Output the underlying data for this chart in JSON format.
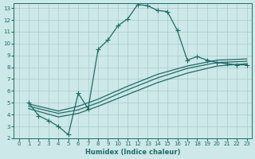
{
  "xlabel": "Humidex (Indice chaleur)",
  "xlim": [
    -0.5,
    23.5
  ],
  "ylim": [
    2,
    13.4
  ],
  "xticks": [
    0,
    1,
    2,
    3,
    4,
    5,
    6,
    7,
    8,
    9,
    10,
    11,
    12,
    13,
    14,
    15,
    16,
    17,
    18,
    19,
    20,
    21,
    22,
    23
  ],
  "yticks": [
    2,
    3,
    4,
    5,
    6,
    7,
    8,
    9,
    10,
    11,
    12,
    13
  ],
  "bg_color": "#cce8e8",
  "grid_color": "#aacccc",
  "line_color": "#1f6b65",
  "curve_x": [
    1,
    2,
    3,
    4,
    5,
    6,
    7,
    8,
    9,
    10,
    11,
    12,
    13,
    14,
    15,
    16,
    17,
    18,
    19,
    20,
    21,
    22,
    23
  ],
  "curve_y": [
    5.0,
    3.9,
    3.5,
    3.0,
    2.3,
    5.8,
    4.5,
    9.5,
    10.3,
    11.5,
    12.1,
    13.3,
    13.2,
    12.8,
    12.7,
    11.1,
    8.6,
    8.9,
    8.6,
    8.4,
    8.3,
    8.2,
    8.2
  ],
  "lin1_x": [
    1,
    4,
    6,
    8,
    11,
    14,
    17,
    20,
    23
  ],
  "lin1_y": [
    4.5,
    3.8,
    4.1,
    4.7,
    5.7,
    6.7,
    7.5,
    8.1,
    8.3
  ],
  "lin2_x": [
    1,
    4,
    6,
    8,
    11,
    14,
    17,
    20,
    23
  ],
  "lin2_y": [
    4.7,
    4.1,
    4.4,
    5.0,
    6.1,
    7.1,
    7.9,
    8.4,
    8.5
  ],
  "lin3_x": [
    1,
    4,
    6,
    8,
    11,
    14,
    17,
    20,
    23
  ],
  "lin3_y": [
    4.9,
    4.3,
    4.7,
    5.3,
    6.4,
    7.4,
    8.1,
    8.6,
    8.7
  ]
}
